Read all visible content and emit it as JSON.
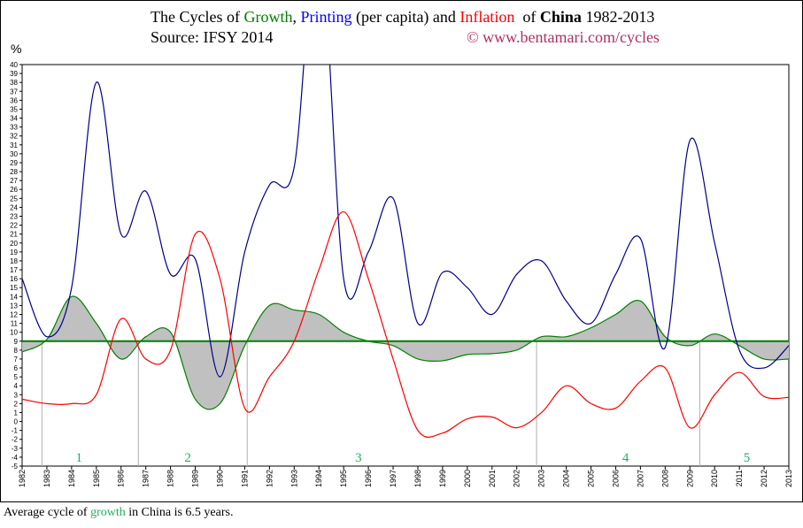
{
  "title": {
    "p1": "The Cycles of ",
    "growth": "Growth",
    "p2": ", ",
    "printing": "Printing",
    "p3": " (per capita) and ",
    "inflation": "Inflation",
    "p4": "  of ",
    "china": "China",
    "p5": " 1982-2013"
  },
  "source": "Source: IFSY 2014",
  "copyright": "© www.bentamari.com/cycles",
  "footer": {
    "p1": "Average cycle of ",
    "growth": "growth",
    "p2": " in China is 6.5 years."
  },
  "colors": {
    "growth": "#008000",
    "printing": "#00008b",
    "inflation": "#ff0000",
    "fill": "#c0c0c0",
    "average": "#008000",
    "cycle_label": "#20b060"
  },
  "chart_data": {
    "type": "line",
    "ylabel": "%",
    "ylim": [
      -5,
      40
    ],
    "xlim": [
      1982,
      2013
    ],
    "x": [
      1982,
      1983,
      1984,
      1985,
      1986,
      1987,
      1988,
      1989,
      1990,
      1991,
      1992,
      1993,
      1994,
      1995,
      1996,
      1997,
      1998,
      1999,
      2000,
      2001,
      2002,
      2003,
      2004,
      2005,
      2006,
      2007,
      2008,
      2009,
      2010,
      2011,
      2012,
      2013
    ],
    "series": [
      {
        "name": "Growth",
        "key": "growth",
        "values": [
          7.8,
          9.2,
          14,
          11,
          7,
          9.5,
          10,
          2.5,
          2,
          8.5,
          13,
          12.5,
          12,
          10,
          9,
          8.5,
          7,
          6.8,
          7.5,
          7.6,
          8,
          9.5,
          9.5,
          10.5,
          12,
          13.5,
          9.5,
          8.5,
          9.8,
          8.5,
          7,
          7
        ]
      },
      {
        "name": "Printing",
        "key": "printing",
        "values": [
          16,
          9.5,
          15,
          38,
          21,
          25.8,
          16.5,
          18.2,
          5,
          19,
          26.5,
          28.5,
          55,
          16,
          19,
          25,
          11,
          16.7,
          15,
          12,
          16.5,
          18,
          13.5,
          11,
          16.5,
          20.5,
          8.3,
          31.5,
          20,
          8,
          6,
          8.5
        ]
      },
      {
        "name": "Inflation",
        "key": "inflation",
        "values": [
          2.5,
          2,
          2,
          3,
          11.5,
          7,
          8,
          21,
          16,
          1.5,
          5,
          9,
          17,
          23.5,
          16,
          7,
          -1,
          -1.3,
          0.3,
          0.5,
          -0.7,
          1,
          4,
          2,
          1.5,
          4.5,
          6,
          -0.7,
          3,
          5.5,
          2.8,
          2.7
        ]
      }
    ],
    "average_growth": 9,
    "cycle_boundaries": [
      1982.8,
      1986.7,
      1991.1,
      2002.8,
      2009.4
    ],
    "cycle_labels": [
      {
        "label": "1",
        "x": 1984.3
      },
      {
        "label": "2",
        "x": 1988.7
      },
      {
        "label": "3",
        "x": 1995.6
      },
      {
        "label": "4",
        "x": 2006.4
      },
      {
        "label": "5",
        "x": 2011.3
      }
    ],
    "grid": false,
    "legend": "none"
  }
}
